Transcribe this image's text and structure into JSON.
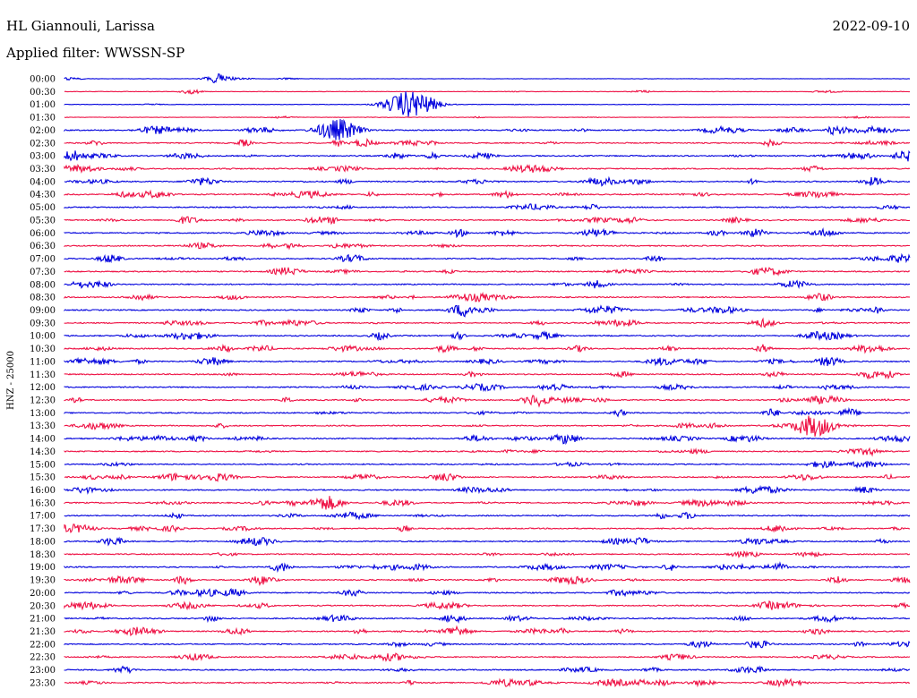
{
  "header": {
    "station": "HL Giannouli, Larissa",
    "date": "2022-09-10",
    "filter": "Applied filter: WWSSN-SP"
  },
  "chart_data": {
    "type": "line",
    "title": "HL Giannouli, Larissa",
    "subtitle": "Applied filter: WWSSN-SP",
    "date": "2022-09-10",
    "ylabel": "HNZ - 25000",
    "row_labels": [
      "00:00",
      "00:30",
      "01:00",
      "01:30",
      "02:00",
      "02:30",
      "03:00",
      "03:30",
      "04:00",
      "04:30",
      "05:00",
      "05:30",
      "06:00",
      "06:30",
      "07:00",
      "07:30",
      "08:00",
      "08:30",
      "09:00",
      "09:30",
      "10:00",
      "10:30",
      "11:00",
      "11:30",
      "12:00",
      "12:30",
      "13:00",
      "13:30",
      "14:00",
      "14:30",
      "15:00",
      "15:30",
      "16:00",
      "16:30",
      "17:00",
      "17:30",
      "18:00",
      "18:30",
      "19:00",
      "19:30",
      "20:00",
      "20:30",
      "21:00",
      "21:30",
      "22:00",
      "22:30",
      "23:00",
      "23:30"
    ],
    "trace_colors": [
      "#0000dd",
      "#ee1144"
    ],
    "rows_per_trace": 48,
    "minutes_per_row": 30,
    "notable_events": [
      {
        "row": "00:00",
        "minute": 5.5,
        "amplitude": 0.8
      },
      {
        "row": "00:30",
        "minute": 4.5,
        "amplitude": 0.4
      },
      {
        "row": "01:00",
        "minute": 12.3,
        "amplitude": 2.2
      },
      {
        "row": "02:00",
        "minute": 9.7,
        "amplitude": 1.8
      },
      {
        "row": "03:00",
        "minute": 0.3,
        "amplitude": 0.9
      },
      {
        "row": "03:00",
        "minute": 29.9,
        "amplitude": 0.9
      },
      {
        "row": "04:00",
        "minute": 28.7,
        "amplitude": 0.7
      },
      {
        "row": "06:00",
        "minute": 24.5,
        "amplitude": 0.7
      },
      {
        "row": "08:00",
        "minute": 0.6,
        "amplitude": 0.6
      },
      {
        "row": "08:30",
        "minute": 26.8,
        "amplitude": 0.7
      },
      {
        "row": "09:00",
        "minute": 14.2,
        "amplitude": 1.1
      },
      {
        "row": "10:30",
        "minute": 13.5,
        "amplitude": 0.6
      },
      {
        "row": "11:00",
        "minute": 27.1,
        "amplitude": 0.8
      },
      {
        "row": "12:30",
        "minute": 16.8,
        "amplitude": 1.0
      },
      {
        "row": "13:30",
        "minute": 26.6,
        "amplitude": 1.8
      },
      {
        "row": "14:00",
        "minute": 17.8,
        "amplitude": 0.9
      },
      {
        "row": "16:00",
        "minute": 28.4,
        "amplitude": 0.6
      },
      {
        "row": "16:30",
        "minute": 9.3,
        "amplitude": 1.2
      },
      {
        "row": "18:00",
        "minute": 1.7,
        "amplitude": 0.7
      },
      {
        "row": "19:30",
        "minute": 7.0,
        "amplitude": 0.8
      },
      {
        "row": "20:00",
        "minute": 10.2,
        "amplitude": 0.6
      },
      {
        "row": "21:00",
        "minute": 13.8,
        "amplitude": 0.7
      },
      {
        "row": "21:30",
        "minute": 13.9,
        "amplitude": 0.9
      },
      {
        "row": "22:00",
        "minute": 24.6,
        "amplitude": 0.7
      },
      {
        "row": "23:00",
        "minute": 2.1,
        "amplitude": 0.6
      },
      {
        "row": "23:30",
        "minute": 21.2,
        "amplitude": 0.5
      }
    ],
    "grid": false,
    "legend": "none"
  }
}
